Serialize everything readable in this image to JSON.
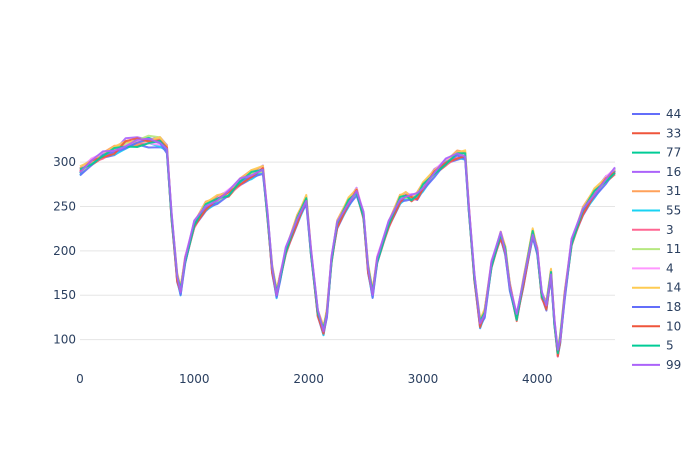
{
  "chart_data": {
    "type": "line",
    "title": "",
    "xlabel": "",
    "ylabel": "",
    "xlim": [
      0,
      4680
    ],
    "ylim": [
      68,
      370
    ],
    "xticks": [
      0,
      1000,
      2000,
      3000,
      4000
    ],
    "yticks": [
      100,
      150,
      200,
      250,
      300
    ],
    "grid": {
      "x": false,
      "y": true
    },
    "legend_position": "right",
    "colors": [
      "#636efa",
      "#ef553b",
      "#00cc96",
      "#ab63fa",
      "#ffa15a",
      "#19d3f3",
      "#ff6692",
      "#b6e880",
      "#ff97ff",
      "#fecb52",
      "#636efa",
      "#ef553b",
      "#00cc96",
      "#ab63fa"
    ],
    "base_profile": {
      "x": [
        0,
        100,
        200,
        300,
        400,
        500,
        600,
        700,
        760,
        800,
        850,
        880,
        920,
        1000,
        1100,
        1200,
        1300,
        1400,
        1500,
        1600,
        1640,
        1680,
        1720,
        1750,
        1800,
        1900,
        1980,
        2020,
        2080,
        2130,
        2160,
        2200,
        2250,
        2350,
        2420,
        2480,
        2520,
        2560,
        2600,
        2700,
        2800,
        2850,
        2900,
        2950,
        3000,
        3100,
        3200,
        3300,
        3370,
        3400,
        3450,
        3500,
        3540,
        3600,
        3680,
        3720,
        3760,
        3820,
        3880,
        3960,
        4000,
        4040,
        4080,
        4120,
        4150,
        4180,
        4200,
        4240,
        4300,
        4400,
        4500,
        4600,
        4680
      ],
      "y": [
        290,
        300,
        308,
        313,
        317,
        320,
        321,
        321,
        315,
        240,
        170,
        155,
        190,
        230,
        250,
        258,
        265,
        278,
        286,
        292,
        240,
        180,
        152,
        170,
        200,
        235,
        258,
        200,
        130,
        110,
        130,
        190,
        230,
        255,
        267,
        240,
        180,
        152,
        190,
        230,
        258,
        262,
        260,
        262,
        272,
        288,
        300,
        308,
        308,
        250,
        170,
        118,
        130,
        185,
        218,
        200,
        160,
        125,
        165,
        220,
        200,
        150,
        138,
        175,
        120,
        85,
        100,
        150,
        210,
        245,
        265,
        280,
        290
      ]
    },
    "series": [
      {
        "name": "44"
      },
      {
        "name": "33"
      },
      {
        "name": "77"
      },
      {
        "name": "16"
      },
      {
        "name": "31"
      },
      {
        "name": "55"
      },
      {
        "name": "3"
      },
      {
        "name": "11"
      },
      {
        "name": "4"
      },
      {
        "name": "14"
      },
      {
        "name": "18"
      },
      {
        "name": "10"
      },
      {
        "name": "5"
      },
      {
        "name": "99"
      }
    ]
  }
}
